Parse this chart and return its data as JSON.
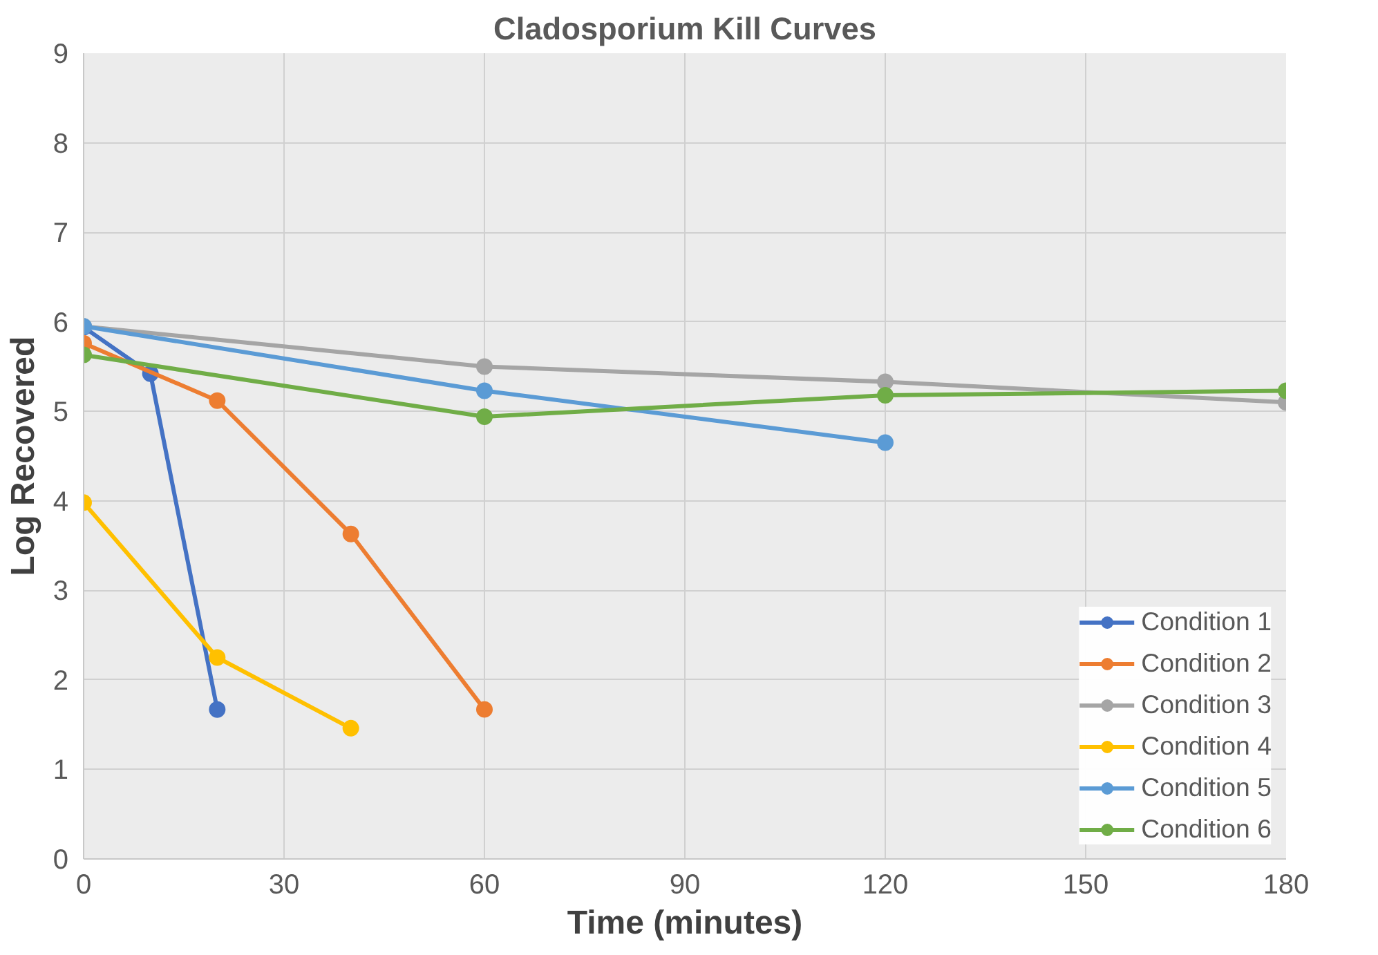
{
  "chart_data": {
    "type": "line",
    "title": "Cladosporium Kill Curves",
    "xlabel": "Time (minutes)",
    "ylabel": "Log Recovered",
    "xlim": [
      0,
      180
    ],
    "xticks": [
      0,
      30,
      60,
      90,
      120,
      150,
      180
    ],
    "ylim": [
      0,
      9
    ],
    "yticks": [
      0,
      1,
      2,
      3,
      4,
      5,
      6,
      7,
      8,
      9
    ],
    "grid": true,
    "legend": "bottom right",
    "marker": "circle",
    "line_style": "solid",
    "series": [
      {
        "name": "Condition 1",
        "color": "#4472c4",
        "x": [
          0,
          10,
          20
        ],
        "values": [
          5.94,
          5.42,
          1.67
        ]
      },
      {
        "name": "Condition 2",
        "color": "#ed7d31",
        "x": [
          0,
          20,
          40,
          60
        ],
        "values": [
          5.76,
          5.12,
          3.63,
          1.67
        ]
      },
      {
        "name": "Condition 3",
        "color": "#a5a5a5",
        "x": [
          0,
          60,
          120,
          180
        ],
        "values": [
          5.95,
          5.5,
          5.33,
          5.1
        ]
      },
      {
        "name": "Condition 4",
        "color": "#ffc000",
        "x": [
          0,
          20,
          40
        ],
        "values": [
          3.98,
          2.25,
          1.46
        ]
      },
      {
        "name": "Condition 5",
        "color": "#5b9bd5",
        "x": [
          0,
          60,
          120
        ],
        "values": [
          5.95,
          5.23,
          4.65
        ]
      },
      {
        "name": "Condition 6",
        "color": "#70ad47",
        "x": [
          0,
          60,
          120,
          180
        ],
        "values": [
          5.63,
          4.94,
          5.18,
          5.23
        ]
      }
    ]
  }
}
